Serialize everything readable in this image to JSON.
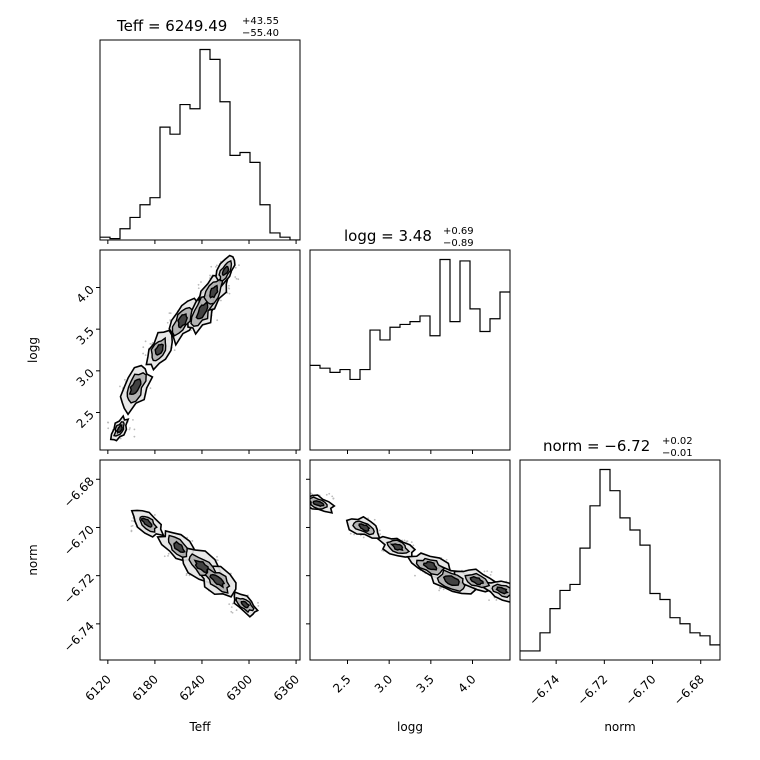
{
  "figure": {
    "background": "#ffffff",
    "line_color": "#000000",
    "fill_light": "#e6e6e6",
    "fill_mid": "#b0b0b0",
    "fill_dark": "#3c3c3c"
  },
  "titles": {
    "teff": {
      "prefix": "Teff = 6249.49",
      "sup": "+43.55",
      "sub": "−55.40"
    },
    "logg": {
      "prefix": "logg = 3.48",
      "sup": "+0.69",
      "sub": "−0.89"
    },
    "norm": {
      "prefix": "norm = −6.72",
      "sup": "+0.02",
      "sub": "−0.01"
    }
  },
  "axis_labels": {
    "teff": "Teff",
    "logg": "logg",
    "norm": "norm"
  },
  "chart_data": [
    {
      "type": "histogram",
      "parameter": "Teff",
      "title": "Teff = 6249.49 +43.55 −55.40",
      "xlim": [
        6110,
        6365
      ],
      "x_ticks": [
        6120,
        6180,
        6240,
        6300,
        6360
      ],
      "bin_edges": [
        6110,
        6122.75,
        6135.5,
        6148.25,
        6161,
        6173.75,
        6186.5,
        6199.25,
        6212,
        6224.75,
        6237.5,
        6250.25,
        6263,
        6275.75,
        6288.5,
        6301.25,
        6314,
        6326.75,
        6339.5,
        6352.25,
        6365
      ],
      "counts": [
        2,
        1,
        8,
        16,
        25,
        30,
        80,
        75,
        96,
        93,
        135,
        128,
        98,
        60,
        62,
        55,
        25,
        5,
        2,
        0
      ]
    },
    {
      "type": "histogram",
      "parameter": "logg",
      "title": "logg = 3.48 +0.69 −0.89",
      "xlim": [
        2.05,
        4.45
      ],
      "x_ticks": [
        2.5,
        3.0,
        3.5,
        4.0
      ],
      "bin_edges": [
        2.05,
        2.17,
        2.29,
        2.41,
        2.53,
        2.65,
        2.77,
        2.89,
        3.01,
        3.13,
        3.25,
        3.37,
        3.49,
        3.61,
        3.73,
        3.85,
        3.97,
        4.09,
        4.21,
        4.33,
        4.45
      ],
      "counts": [
        60,
        58,
        55,
        57,
        50,
        57,
        85,
        78,
        87,
        89,
        91,
        95,
        81,
        135,
        91,
        134,
        100,
        84,
        93,
        112
      ]
    },
    {
      "type": "histogram",
      "parameter": "norm",
      "title": "norm = −6.72 +0.02 −0.01",
      "xlim": [
        -6.755,
        -6.672
      ],
      "x_ticks": [
        -6.74,
        -6.72,
        -6.7,
        -6.68
      ],
      "bin_edges": [
        -6.755,
        -6.75085,
        -6.7467,
        -6.74255,
        -6.7384,
        -6.73425,
        -6.7301,
        -6.72595,
        -6.7218,
        -6.71765,
        -6.7135,
        -6.70935,
        -6.7052,
        -6.70105,
        -6.6969,
        -6.69275,
        -6.6886,
        -6.68445,
        -6.6803,
        -6.67615,
        -6.672
      ],
      "counts": [
        3,
        3,
        9,
        17,
        23,
        25,
        37,
        51,
        63,
        56,
        47,
        43,
        38,
        22,
        20,
        14,
        12,
        9,
        8,
        5
      ]
    },
    {
      "type": "contour",
      "x": "Teff",
      "y": "logg",
      "xlim": [
        6110,
        6365
      ],
      "ylim": [
        2.05,
        4.45
      ],
      "x_ticks": [
        6120,
        6180,
        6240,
        6300,
        6360
      ],
      "y_ticks": [
        2.5,
        3.0,
        3.5,
        4.0
      ],
      "peaks": [
        {
          "x": 6155,
          "y": 2.8,
          "w": 1.0
        },
        {
          "x": 6185,
          "y": 3.25,
          "w": 0.8
        },
        {
          "x": 6215,
          "y": 3.6,
          "w": 0.9
        },
        {
          "x": 6240,
          "y": 3.72,
          "w": 1.0
        },
        {
          "x": 6255,
          "y": 3.95,
          "w": 0.85
        },
        {
          "x": 6270,
          "y": 4.2,
          "w": 0.6
        },
        {
          "x": 6135,
          "y": 2.3,
          "w": 0.5
        }
      ]
    },
    {
      "type": "contour",
      "x": "Teff",
      "y": "norm",
      "xlim": [
        6110,
        6365
      ],
      "ylim": [
        -6.755,
        -6.672
      ],
      "x_ticks": [
        6120,
        6180,
        6240,
        6300,
        6360
      ],
      "y_ticks": [
        -6.74,
        -6.72,
        -6.7,
        -6.68
      ],
      "peaks": [
        {
          "x": 6170,
          "y": -6.698,
          "w": 0.7
        },
        {
          "x": 6210,
          "y": -6.708,
          "w": 0.85
        },
        {
          "x": 6240,
          "y": -6.716,
          "w": 1.0
        },
        {
          "x": 6260,
          "y": -6.722,
          "w": 0.95
        },
        {
          "x": 6295,
          "y": -6.732,
          "w": 0.6
        }
      ]
    },
    {
      "type": "contour",
      "x": "logg",
      "y": "norm",
      "xlim": [
        2.05,
        4.45
      ],
      "ylim": [
        -6.755,
        -6.672
      ],
      "x_ticks": [
        2.5,
        3.0,
        3.5,
        4.0
      ],
      "y_ticks": [
        -6.74,
        -6.72,
        -6.7,
        -6.68
      ],
      "peaks": [
        {
          "x": 2.15,
          "y": -6.69,
          "w": 0.6
        },
        {
          "x": 2.7,
          "y": -6.7,
          "w": 0.7
        },
        {
          "x": 3.1,
          "y": -6.708,
          "w": 0.7
        },
        {
          "x": 3.5,
          "y": -6.716,
          "w": 0.85
        },
        {
          "x": 3.75,
          "y": -6.722,
          "w": 1.0
        },
        {
          "x": 4.05,
          "y": -6.722,
          "w": 0.8
        },
        {
          "x": 4.35,
          "y": -6.726,
          "w": 0.7
        }
      ]
    }
  ]
}
